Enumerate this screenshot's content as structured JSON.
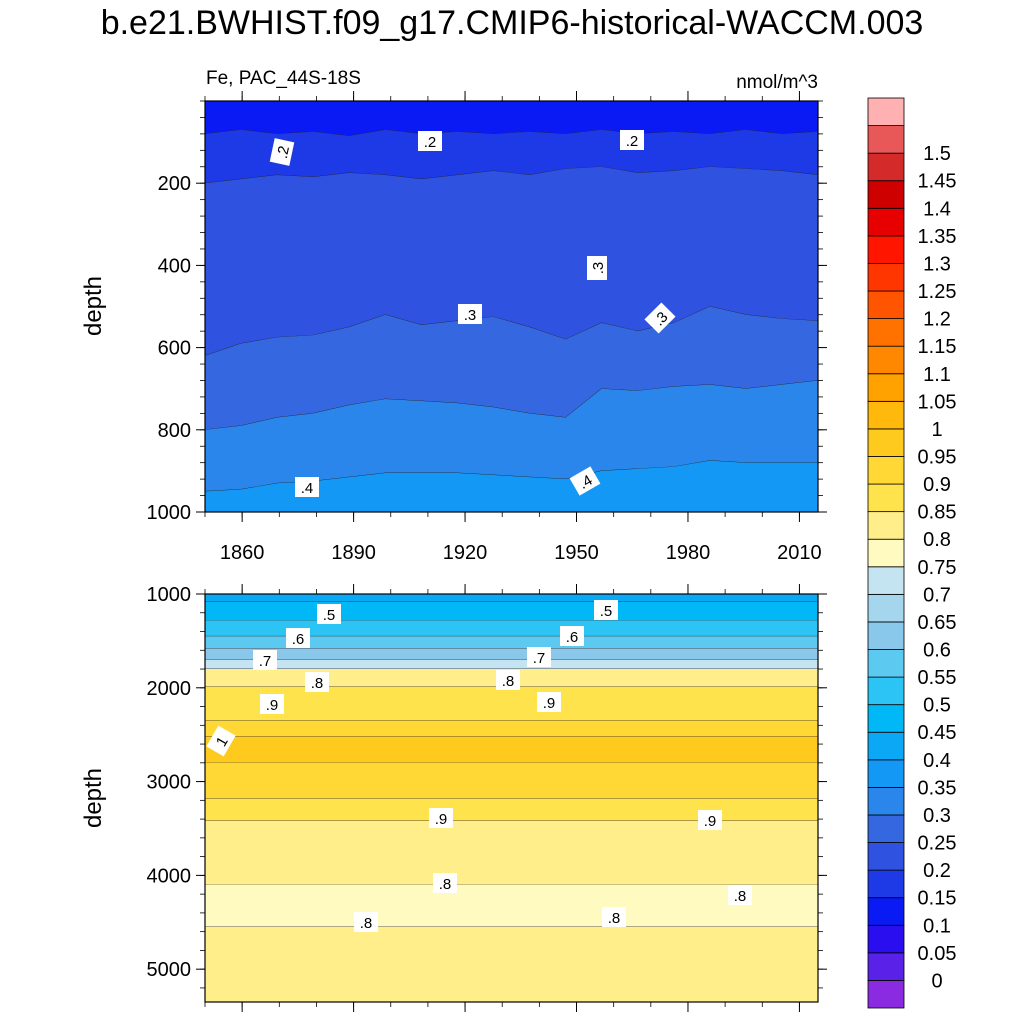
{
  "title": "b.e21.BWHIST.f09_g17.CMIP6-historical-WACCM.003",
  "chart_data": {
    "type": "heatmap",
    "subtitle_left": "Fe, PAC_44S-18S",
    "subtitle_right": "nmol/m^3",
    "ylabel": "depth",
    "x_ticks": [
      "1860",
      "1890",
      "1920",
      "1950",
      "1980",
      "2010"
    ],
    "x_range": [
      1850,
      2015
    ],
    "colorbar_levels": [
      "0",
      "0.05",
      "0.1",
      "0.15",
      "0.2",
      "0.25",
      "0.3",
      "0.35",
      "0.4",
      "0.45",
      "0.5",
      "0.55",
      "0.6",
      "0.65",
      "0.7",
      "0.75",
      "0.8",
      "0.85",
      "0.9",
      "0.95",
      "1",
      "1.05",
      "1.1",
      "1.15",
      "1.2",
      "1.25",
      "1.3",
      "1.35",
      "1.4",
      "1.45",
      "1.5"
    ],
    "colorbar_colors": [
      "#8a2be2",
      "#5a22e8",
      "#2a0ef0",
      "#0a1af5",
      "#1e3ae6",
      "#2f52e0",
      "#3568e0",
      "#2a86ea",
      "#1498f5",
      "#0aa8f5",
      "#00b8f5",
      "#2cc4f4",
      "#5ccaf0",
      "#8ac8eb",
      "#a5d6ee",
      "#c5e4f1",
      "#fffabf",
      "#ffee8a",
      "#ffe34c",
      "#ffd835",
      "#ffca1e",
      "#ffb80c",
      "#ffa200",
      "#ff8800",
      "#ff7200",
      "#ff5500",
      "#ff3600",
      "#ff1500",
      "#e60000",
      "#cf0000",
      "#d42a2a",
      "#e85858",
      "#ffb0b0"
    ],
    "panels": [
      {
        "name": "upper",
        "yticks": [
          "200",
          "400",
          "600",
          "800",
          "1000"
        ],
        "yrange": [
          0,
          1000
        ],
        "contour_labels": [
          ".2",
          ".2",
          ".2",
          ".3",
          ".3",
          ".3",
          ".4",
          ".4"
        ],
        "bands": [
          {
            "level": "0.1",
            "depth_top": [
              0,
              0,
              0,
              0,
              0,
              0,
              0,
              0,
              0,
              0,
              0,
              0,
              0,
              0,
              0,
              0,
              0,
              0
            ],
            "depth_bottom": [
              80,
              70,
              80,
              75,
              85,
              70,
              80,
              75,
              80,
              75,
              80,
              70,
              80,
              75,
              80,
              70,
              80,
              75
            ]
          },
          {
            "level": "0.15",
            "depth_top": [
              80,
              70,
              80,
              75,
              85,
              70,
              80,
              75,
              80,
              75,
              80,
              70,
              80,
              75,
              80,
              70,
              80,
              75
            ],
            "depth_bottom": [
              200,
              190,
              180,
              185,
              175,
              180,
              190,
              180,
              170,
              180,
              165,
              160,
              175,
              170,
              160,
              165,
              170,
              180
            ]
          },
          {
            "level": "0.2",
            "depth_top": [
              200,
              190,
              180,
              185,
              175,
              180,
              190,
              180,
              170,
              180,
              165,
              160,
              175,
              170,
              160,
              165,
              170,
              180
            ],
            "depth_bottom": [
              620,
              590,
              575,
              570,
              550,
              520,
              545,
              535,
              525,
              550,
              580,
              540,
              560,
              540,
              500,
              520,
              530,
              535
            ]
          },
          {
            "level": "0.25",
            "depth_top": [
              620,
              590,
              575,
              570,
              550,
              520,
              545,
              535,
              525,
              550,
              580,
              540,
              560,
              540,
              500,
              520,
              530,
              535
            ],
            "depth_bottom": [
              800,
              790,
              770,
              760,
              740,
              725,
              730,
              735,
              745,
              760,
              770,
              700,
              705,
              695,
              690,
              700,
              690,
              680
            ]
          },
          {
            "level": "0.3",
            "depth_top": [
              800,
              790,
              770,
              760,
              740,
              725,
              730,
              735,
              745,
              760,
              770,
              700,
              705,
              695,
              690,
              700,
              690,
              680
            ],
            "depth_bottom": [
              950,
              945,
              930,
              925,
              915,
              905,
              905,
              905,
              910,
              915,
              920,
              900,
              895,
              890,
              875,
              880,
              880,
              880
            ]
          },
          {
            "level": "0.35",
            "depth_top": [
              950,
              945,
              930,
              925,
              915,
              905,
              905,
              905,
              910,
              915,
              920,
              900,
              895,
              890,
              875,
              880,
              880,
              880
            ],
            "depth_bottom": [
              1000,
              1000,
              1000,
              1000,
              1000,
              1000,
              1000,
              1000,
              1000,
              1000,
              1000,
              1000,
              1000,
              1000,
              1000,
              1000,
              1000,
              1000
            ]
          }
        ]
      },
      {
        "name": "lower",
        "yticks": [
          "1000",
          "2000",
          "3000",
          "4000",
          "5000"
        ],
        "yrange": [
          1000,
          5350
        ],
        "contour_labels": [
          ".5",
          ".5",
          ".6",
          ".6",
          ".7",
          ".7",
          ".8",
          ".8",
          ".9",
          ".9",
          "1",
          ".9",
          ".9",
          ".8",
          ".8",
          ".8",
          ".8"
        ],
        "bands": [
          {
            "level": "0.4",
            "depth_top": [
              1000,
              1000,
              1000,
              1000,
              1000,
              1000
            ],
            "depth_bottom": [
              1080,
              1080,
              1080,
              1080,
              1080,
              1080
            ]
          },
          {
            "level": "0.45",
            "depth_top": [
              1080,
              1080,
              1080,
              1080,
              1080,
              1080
            ],
            "depth_bottom": [
              1280,
              1280,
              1280,
              1280,
              1280,
              1280
            ]
          },
          {
            "level": "0.5",
            "depth_top": [
              1280,
              1280,
              1280,
              1280,
              1280,
              1280
            ],
            "depth_bottom": [
              1450,
              1450,
              1450,
              1450,
              1450,
              1450
            ]
          },
          {
            "level": "0.55",
            "depth_top": [
              1450,
              1450,
              1450,
              1450,
              1450,
              1450
            ],
            "depth_bottom": [
              1580,
              1580,
              1580,
              1580,
              1580,
              1580
            ]
          },
          {
            "level": "0.6",
            "depth_top": [
              1580,
              1580,
              1580,
              1580,
              1580,
              1580
            ],
            "depth_bottom": [
              1700,
              1700,
              1700,
              1700,
              1700,
              1700
            ]
          },
          {
            "level": "0.7",
            "depth_top": [
              1700,
              1700,
              1700,
              1700,
              1700,
              1700
            ],
            "depth_bottom": [
              1800,
              1800,
              1800,
              1800,
              1800,
              1800
            ]
          },
          {
            "level": "0.8",
            "depth_top": [
              1800,
              1800,
              1800,
              1800,
              1800,
              1800
            ],
            "depth_bottom": [
              1990,
              1990,
              1990,
              1990,
              1990,
              1990
            ]
          },
          {
            "level": "0.85",
            "depth_top": [
              1990,
              1990,
              1990,
              1990,
              1990,
              1990
            ],
            "depth_bottom": [
              2350,
              2350,
              2350,
              2350,
              2350,
              2350
            ]
          },
          {
            "level": "0.9",
            "depth_top": [
              2350,
              2350,
              2350,
              2350,
              2350,
              2350
            ],
            "depth_bottom": [
              2520,
              2520,
              2520,
              2520,
              2520,
              2520
            ]
          },
          {
            "level": "0.95",
            "depth_top": [
              2520,
              2520,
              2520,
              2520,
              2520,
              2520
            ],
            "depth_bottom": [
              2800,
              2800,
              2800,
              2800,
              2800,
              2800
            ]
          },
          {
            "level": "0.9",
            "depth_top": [
              2800,
              2800,
              2800,
              2800,
              2800,
              2800
            ],
            "depth_bottom": [
              3180,
              3180,
              3180,
              3180,
              3180,
              3180
            ]
          },
          {
            "level": "0.85",
            "depth_top": [
              3180,
              3180,
              3180,
              3180,
              3180,
              3180
            ],
            "depth_bottom": [
              3420,
              3420,
              3420,
              3420,
              3420,
              3420
            ]
          },
          {
            "level": "0.8",
            "depth_top": [
              3420,
              3420,
              3420,
              3420,
              3420,
              3420
            ],
            "depth_bottom": [
              4100,
              4100,
              4100,
              4100,
              4100,
              4100
            ]
          },
          {
            "level": "0.75",
            "depth_top": [
              4100,
              4100,
              4100,
              4100,
              4100,
              4100
            ],
            "depth_bottom": [
              4550,
              4550,
              4550,
              4550,
              4550,
              4550
            ]
          },
          {
            "level": "0.8",
            "depth_top": [
              4550,
              4550,
              4550,
              4550,
              4550,
              4550
            ],
            "depth_bottom": [
              5350,
              5350,
              5350,
              5350,
              5350,
              5350
            ]
          }
        ]
      }
    ]
  }
}
